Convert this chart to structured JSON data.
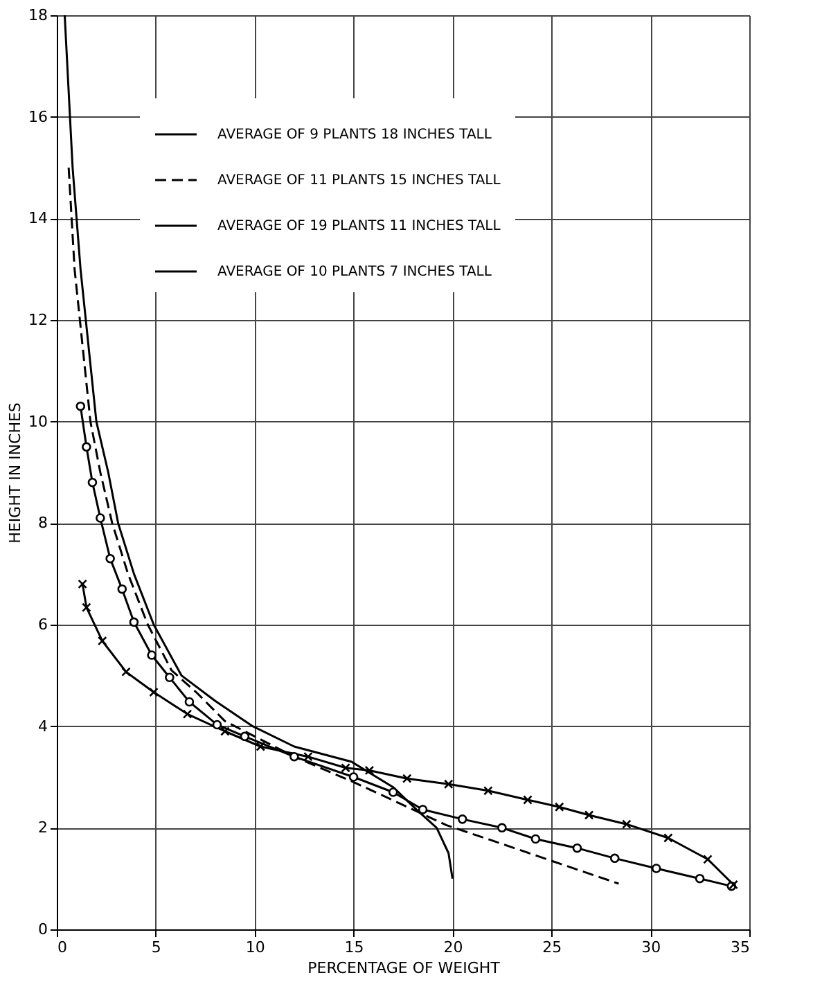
{
  "chart_data": {
    "type": "line",
    "xlabel": "PERCENTAGE OF WEIGHT",
    "ylabel": "HEIGHT IN INCHES",
    "xlim": [
      0,
      35
    ],
    "xticks": [
      0,
      5,
      10,
      15,
      20,
      25,
      30,
      35
    ],
    "ylim": [
      0,
      18
    ],
    "yticks": [
      0,
      2,
      4,
      6,
      8,
      10,
      12,
      14,
      16,
      18
    ],
    "grid": true,
    "legend": "top",
    "series": [
      {
        "name": "AVERAGE OF 9 PLANTS 18 INCHES TALL",
        "color": "#000000",
        "line_style": "solid",
        "marker": "none",
        "x": [
          0.4,
          0.8,
          1.2,
          1.6,
          2.0,
          2.6,
          3.1,
          3.9,
          4.9,
          6.3,
          8,
          9.9,
          12,
          14.9,
          17,
          18.2,
          19.2,
          19.8,
          20
        ],
        "values": [
          18,
          15,
          13,
          11.5,
          10,
          9,
          8,
          7,
          6,
          5,
          4.5,
          4,
          3.6,
          3.3,
          2.8,
          2.35,
          2.0,
          1.5,
          1.0
        ]
      },
      {
        "name": "AVERAGE OF 11 PLANTS 15 INCHES TALL",
        "color": "#000000",
        "line_style": "dashed",
        "marker": "none",
        "x": [
          0.6,
          0.9,
          1.3,
          1.7,
          2.2,
          2.8,
          3.6,
          4.6,
          5.8,
          7.1,
          8.5,
          10,
          12,
          15,
          17.5,
          19.7,
          22,
          25,
          28.4
        ],
        "values": [
          15,
          13,
          11.5,
          10,
          9,
          8,
          7,
          6,
          5.1,
          4.65,
          4.1,
          3.8,
          3.4,
          2.9,
          2.45,
          2.05,
          1.75,
          1.35,
          0.9
        ]
      },
      {
        "name": "AVERAGE OF 19 PLANTS 11 INCHES TALL",
        "color": "#000000",
        "line_style": "solid",
        "marker": "circle",
        "x": [
          1.2,
          1.5,
          1.8,
          2.2,
          2.7,
          3.3,
          3.9,
          4.8,
          5.7,
          6.7,
          8.1,
          9.5,
          12,
          15,
          17,
          18.5,
          20.5,
          22.5,
          24.2,
          26.3,
          28.2,
          30.3,
          32.5,
          34.1
        ],
        "values": [
          10.3,
          9.5,
          8.8,
          8.1,
          7.3,
          6.7,
          6.05,
          5.4,
          4.96,
          4.48,
          4.03,
          3.8,
          3.4,
          3.0,
          2.7,
          2.36,
          2.17,
          2.0,
          1.78,
          1.6,
          1.4,
          1.2,
          1.0,
          0.85
        ]
      },
      {
        "name": "AVERAGE OF 10 PLANTS 7 INCHES TALL",
        "color": "#000000",
        "line_style": "solid",
        "marker": "cross",
        "x": [
          1.3,
          1.5,
          2.3,
          3.5,
          4.9,
          6.6,
          8.5,
          10.3,
          12.7,
          14.6,
          15.8,
          17.7,
          19.8,
          21.8,
          23.8,
          25.4,
          26.9,
          28.8,
          30.9,
          32.9,
          34.2
        ],
        "values": [
          6.8,
          6.34,
          5.68,
          5.07,
          4.67,
          4.24,
          3.9,
          3.6,
          3.4,
          3.18,
          3.13,
          2.97,
          2.86,
          2.73,
          2.55,
          2.41,
          2.25,
          2.07,
          1.8,
          1.38,
          0.88
        ]
      }
    ]
  }
}
